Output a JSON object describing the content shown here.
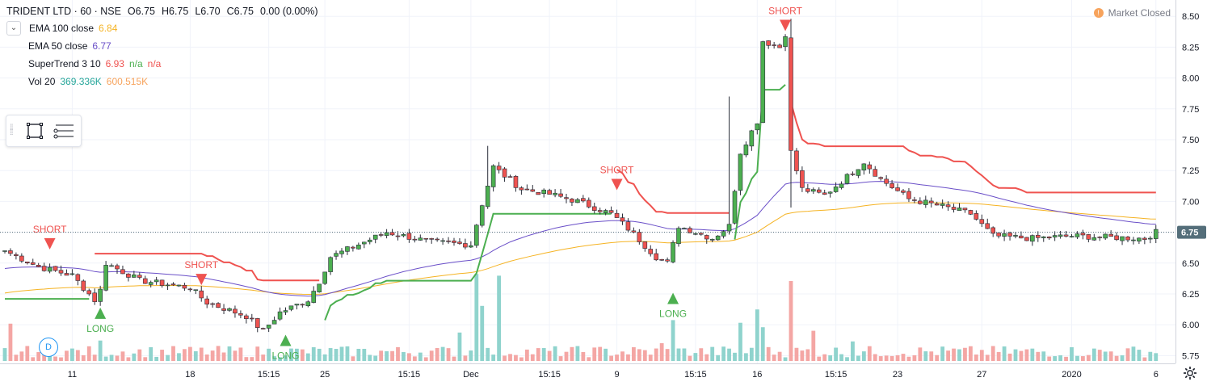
{
  "header": {
    "symbol": "TRIDENT LTD · 60 · NSE",
    "open": "O6.75",
    "high": "H6.75",
    "low": "L6.70",
    "close": "C6.75",
    "change": "0.00 (0.00%)"
  },
  "indicators": [
    {
      "name": "EMA 100 close",
      "values": [
        "6.84"
      ],
      "colors": [
        "#f5b323"
      ]
    },
    {
      "name": "EMA 50 close",
      "values": [
        "6.77"
      ],
      "colors": [
        "#6a4fc8"
      ]
    },
    {
      "name": "SuperTrend 3 10",
      "values": [
        "6.93",
        "n/a",
        "n/a"
      ],
      "colors": [
        "#ef5350",
        "#4caf50",
        "#ef5350"
      ]
    },
    {
      "name": "Vol 20",
      "values": [
        "369.336K",
        "600.515K"
      ],
      "colors": [
        "#26a69a",
        "#f7a35c"
      ]
    }
  ],
  "market_status": {
    "label": "Market Closed",
    "icon": "clock-icon"
  },
  "event_badge": "D",
  "colors": {
    "up": "#26a69a",
    "down": "#ef5350",
    "upCandle": "#4caf50",
    "vol_up": "#8fd3cd",
    "vol_down": "#f4a6a4",
    "ema100": "#f5b323",
    "ema50": "#6a4fc8",
    "st_up": "#4caf50",
    "st_down": "#ef5350",
    "last_price": "#546e7a",
    "grid": "#f0f3fa"
  },
  "chart_data": {
    "type": "candlestick",
    "symbol": "TRIDENT LTD",
    "interval": "60",
    "exchange": "NSE",
    "last_price_label": "6.75",
    "ylim": [
      5.7,
      8.58
    ],
    "y_ticks": [
      "8.50",
      "8.25",
      "8.00",
      "7.75",
      "7.50",
      "7.25",
      "7.00",
      "6.75",
      "6.50",
      "6.25",
      "6.00",
      "5.75"
    ],
    "x_ticks": [
      {
        "i": 12,
        "label": "11"
      },
      {
        "i": 33,
        "label": "18"
      },
      {
        "i": 47,
        "label": "15:15"
      },
      {
        "i": 57,
        "label": "25"
      },
      {
        "i": 72,
        "label": "15:15"
      },
      {
        "i": 83,
        "label": "Dec"
      },
      {
        "i": 97,
        "label": "15:15"
      },
      {
        "i": 109,
        "label": "9"
      },
      {
        "i": 123,
        "label": "15:15"
      },
      {
        "i": 134,
        "label": "16"
      },
      {
        "i": 148,
        "label": "15:15"
      },
      {
        "i": 159,
        "label": "23"
      },
      {
        "i": 174,
        "label": "27"
      },
      {
        "i": 190,
        "label": "2020"
      },
      {
        "i": 205,
        "label": "6"
      }
    ],
    "signals": [
      {
        "i": 8,
        "type": "SHORT",
        "price": 6.65
      },
      {
        "i": 17,
        "type": "LONG",
        "price": 6.1
      },
      {
        "i": 35,
        "type": "SHORT",
        "price": 6.36
      },
      {
        "i": 50,
        "type": "LONG",
        "price": 5.88
      },
      {
        "i": 109,
        "type": "SHORT",
        "price": 7.13
      },
      {
        "i": 119,
        "type": "LONG",
        "price": 6.22
      },
      {
        "i": 139,
        "type": "SHORT",
        "price": 8.42
      }
    ],
    "anchors": [
      [
        0,
        6.6
      ],
      [
        6,
        6.47
      ],
      [
        12,
        6.4
      ],
      [
        16,
        6.2
      ],
      [
        17,
        6.28
      ],
      [
        18,
        6.5
      ],
      [
        24,
        6.36
      ],
      [
        33,
        6.3
      ],
      [
        36,
        6.18
      ],
      [
        43,
        6.07
      ],
      [
        46,
        5.95
      ],
      [
        49,
        6.1
      ],
      [
        54,
        6.2
      ],
      [
        56,
        6.35
      ],
      [
        58,
        6.55
      ],
      [
        63,
        6.65
      ],
      [
        68,
        6.75
      ],
      [
        76,
        6.67
      ],
      [
        83,
        6.65
      ],
      [
        85,
        6.98
      ],
      [
        87,
        7.28
      ],
      [
        92,
        7.1
      ],
      [
        97,
        7.06
      ],
      [
        102,
        7.0
      ],
      [
        108,
        6.9
      ],
      [
        111,
        6.78
      ],
      [
        116,
        6.55
      ],
      [
        118,
        6.5
      ],
      [
        120,
        6.8
      ],
      [
        126,
        6.7
      ],
      [
        129,
        6.8
      ],
      [
        131,
        7.4
      ],
      [
        134,
        7.65
      ],
      [
        135,
        8.3
      ],
      [
        138,
        8.25
      ],
      [
        139,
        8.36
      ],
      [
        140,
        7.4
      ],
      [
        142,
        7.1
      ],
      [
        146,
        7.05
      ],
      [
        150,
        7.2
      ],
      [
        153,
        7.32
      ],
      [
        156,
        7.18
      ],
      [
        161,
        7.02
      ],
      [
        167,
        6.96
      ],
      [
        172,
        6.9
      ],
      [
        176,
        6.72
      ],
      [
        183,
        6.7
      ],
      [
        190,
        6.72
      ],
      [
        196,
        6.71
      ],
      [
        203,
        6.7
      ],
      [
        205,
        6.75
      ]
    ],
    "volume_spikes": [
      {
        "i": 1,
        "v": 0.42,
        "dir": "down"
      },
      {
        "i": 17,
        "v": 0.23,
        "dir": "up"
      },
      {
        "i": 81,
        "v": 0.32,
        "dir": "up"
      },
      {
        "i": 84,
        "v": 0.98,
        "dir": "up"
      },
      {
        "i": 85,
        "v": 0.62,
        "dir": "up"
      },
      {
        "i": 88,
        "v": 0.96,
        "dir": "up"
      },
      {
        "i": 117,
        "v": 0.2,
        "dir": "down"
      },
      {
        "i": 119,
        "v": 0.46,
        "dir": "up"
      },
      {
        "i": 131,
        "v": 0.43,
        "dir": "up"
      },
      {
        "i": 134,
        "v": 0.58,
        "dir": "up"
      },
      {
        "i": 135,
        "v": 0.38,
        "dir": "up"
      },
      {
        "i": 140,
        "v": 0.9,
        "dir": "down"
      },
      {
        "i": 144,
        "v": 0.34,
        "dir": "down"
      },
      {
        "i": 151,
        "v": 0.22,
        "dir": "up"
      }
    ],
    "grid": true
  }
}
